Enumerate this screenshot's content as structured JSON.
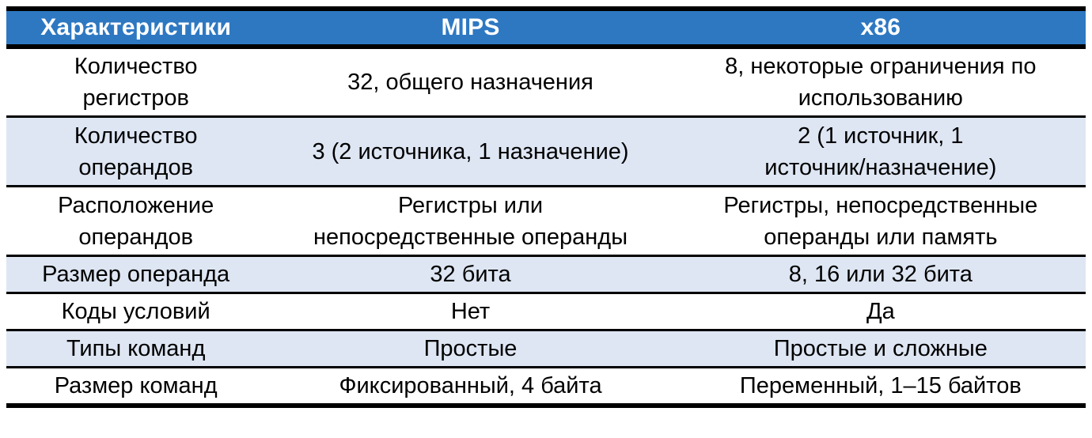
{
  "table": {
    "header": {
      "characteristic": "Характеристики",
      "mips": "MIPS",
      "x86": "x86"
    },
    "rows": [
      {
        "label": "Количество\nрегистров",
        "mips": "32, общего назначения",
        "x86": "8, некоторые ограничения по\nиспользованию"
      },
      {
        "label": "Количество\nоперандов",
        "mips": "3 (2 источника, 1 назначение)",
        "x86": "2 (1 источник, 1\nисточник/назначение)"
      },
      {
        "label": "Расположение\nоперандов",
        "mips": "Регистры или\nнепосредственные операнды",
        "x86": "Регистры, непосредственные\nоперанды или память"
      },
      {
        "label": "Размер операнда",
        "mips": "32 бита",
        "x86": "8, 16 или 32 бита"
      },
      {
        "label": "Коды условий",
        "mips": "Нет",
        "x86": "Да"
      },
      {
        "label": "Типы команд",
        "mips": "Простые",
        "x86": "Простые и сложные"
      },
      {
        "label": "Размер команд",
        "mips": "Фиксированный, 4 байта",
        "x86": "Переменный, 1–15 байтов"
      }
    ],
    "colors": {
      "header_bg": "#2E78C2",
      "header_text": "#FFFFFF",
      "row_bg": "#FFFFFF",
      "row_alt_bg": "#DEE6F3",
      "border": "#000000"
    }
  }
}
